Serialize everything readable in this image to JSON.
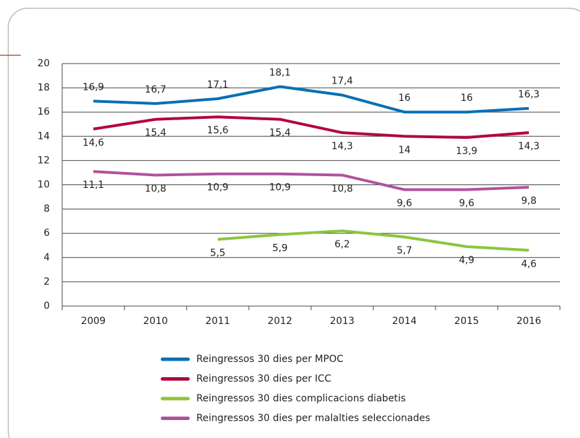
{
  "chart_data": {
    "type": "line",
    "categories": [
      "2009",
      "2010",
      "2011",
      "2012",
      "2013",
      "2014",
      "2015",
      "2016"
    ],
    "ylim": [
      0,
      20
    ],
    "yticks": [
      0,
      2,
      4,
      6,
      8,
      10,
      12,
      14,
      16,
      18,
      20
    ],
    "grid": true,
    "series": [
      {
        "name": "Reingressos 30 dies per MPOC",
        "color": "#0a6fb5",
        "values": [
          16.9,
          16.7,
          17.1,
          18.1,
          17.4,
          16,
          16,
          16.3
        ],
        "value_labels": [
          "16,9",
          "16,7",
          "17,1",
          "18,1",
          "17,4",
          "16",
          "16",
          "16,3"
        ]
      },
      {
        "name": "Reingressos 30 dies per ICC",
        "color": "#b2053e",
        "values": [
          14.6,
          15.4,
          15.6,
          15.4,
          14.3,
          14,
          13.9,
          14.3
        ],
        "value_labels": [
          "14,6",
          "15,4",
          "15,6",
          "15,4",
          "14,3",
          "14",
          "13,9",
          "14,3"
        ]
      },
      {
        "name": "Reingressos 30 dies complicacions diabetis",
        "color": "#8cc53f",
        "values": [
          null,
          null,
          5.5,
          5.9,
          6.2,
          5.7,
          4.9,
          4.6
        ],
        "value_labels": [
          null,
          null,
          "5,5",
          "5,9",
          "6,2",
          "5,7",
          "4,9",
          "4,6"
        ]
      },
      {
        "name": "Reingressos 30 dies per malalties seleccionades",
        "color": "#b0529e",
        "values": [
          11.1,
          10.8,
          10.9,
          10.9,
          10.8,
          9.6,
          9.6,
          9.8
        ],
        "value_labels": [
          "11,1",
          "10,8",
          "10,9",
          "10,9",
          "10,8",
          "9,6",
          "9,6",
          "9,8"
        ]
      }
    ]
  }
}
